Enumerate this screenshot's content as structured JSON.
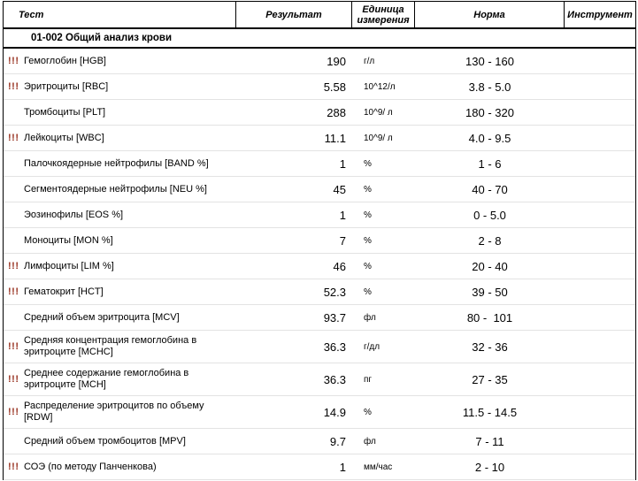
{
  "colors": {
    "abnormal_flag": "#993322",
    "header_border": "#000000",
    "row_separator": "#e3e3e3",
    "background": "#ffffff"
  },
  "table": {
    "columns": {
      "test": "Тест",
      "result": "Результат",
      "unit": "Единица измерения",
      "norm": "Норма",
      "instrument": "Инструмент"
    },
    "section_title": "01-002 Общий анализ крови",
    "abnormal_flag_symbol": "!!!",
    "rows": [
      {
        "flag": "!!!",
        "test": "Гемоглобин [HGB]",
        "result": "190",
        "unit": "г/л",
        "norm": "130 - 160",
        "instrument": ""
      },
      {
        "flag": "!!!",
        "test": "Эритроциты [RBC]",
        "result": "5.58",
        "unit": "10^12/л",
        "norm": "3.8 - 5.0",
        "instrument": ""
      },
      {
        "flag": "",
        "test": "Тромбоциты [PLT]",
        "result": "288",
        "unit": "10^9/ л",
        "norm": "180 - 320",
        "instrument": ""
      },
      {
        "flag": "!!!",
        "test": "Лейкоциты [WBC]",
        "result": "11.1",
        "unit": "10^9/ л",
        "norm": "4.0 - 9.5",
        "instrument": ""
      },
      {
        "flag": "",
        "test": "Палочкоядерные нейтрофилы [BAND %]",
        "result": "1",
        "unit": "%",
        "norm": "1 - 6",
        "instrument": ""
      },
      {
        "flag": "",
        "test": "Сегментоядерные нейтрофилы [NEU %]",
        "result": "45",
        "unit": "%",
        "norm": "40 - 70",
        "instrument": ""
      },
      {
        "flag": "",
        "test": "Эозинофилы [EOS %]",
        "result": "1",
        "unit": "%",
        "norm": "0 - 5.0",
        "instrument": ""
      },
      {
        "flag": "",
        "test": "Моноциты [MON %]",
        "result": "7",
        "unit": "%",
        "norm": "2 - 8",
        "instrument": ""
      },
      {
        "flag": "!!!",
        "test": "Лимфоциты [LIM %]",
        "result": "46",
        "unit": "%",
        "norm": "20 - 40",
        "instrument": ""
      },
      {
        "flag": "!!!",
        "test": "Гематокрит [HCT]",
        "result": "52.3",
        "unit": "%",
        "norm": "39 - 50",
        "instrument": ""
      },
      {
        "flag": "",
        "test": "Средний объем эритроцита [MCV]",
        "result": "93.7",
        "unit": "фл",
        "norm": "80 -  101",
        "instrument": ""
      },
      {
        "flag": "!!!",
        "test": "Средняя концентрация гемоглобина в эритроците [MCHC]",
        "result": "36.3",
        "unit": "г/дл",
        "norm": "32 - 36",
        "instrument": ""
      },
      {
        "flag": "!!!",
        "test": "Среднее содержание гемоглобина  в эритроците [MCH]",
        "result": "36.3",
        "unit": "пг",
        "norm": "27 - 35",
        "instrument": ""
      },
      {
        "flag": "!!!",
        "test": "Распределение эритроцитов по объему [RDW]",
        "result": "14.9",
        "unit": "%",
        "norm": "11.5 - 14.5",
        "instrument": ""
      },
      {
        "flag": "",
        "test": "Средний объем тромбоцитов [MPV]",
        "result": "9.7",
        "unit": "фл",
        "norm": "7 - 11",
        "instrument": ""
      },
      {
        "flag": "!!!",
        "test": "СОЭ (по методу Панченкова)",
        "result": "1",
        "unit": "мм/час",
        "norm": "2 - 10",
        "instrument": ""
      }
    ]
  }
}
